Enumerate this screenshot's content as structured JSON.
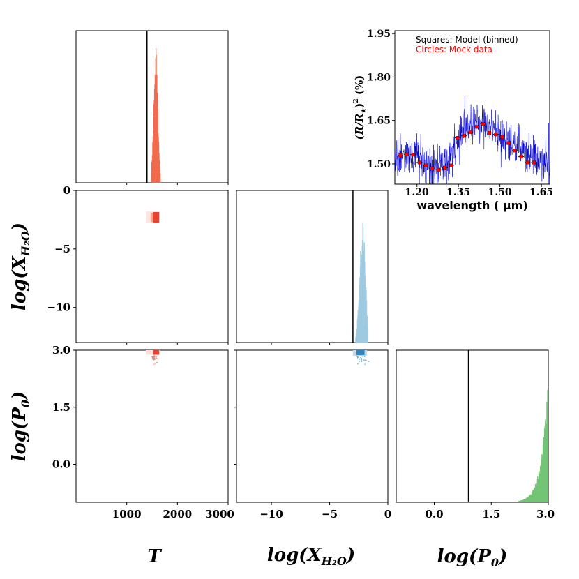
{
  "chart_data": [
    {
      "type": "histogram",
      "panel": "T-marginal",
      "title": "",
      "xlabel": "T",
      "xlim": [
        0,
        3000
      ],
      "xticks": [
        "1000",
        "2000",
        "3000"
      ],
      "true_value": 1400,
      "posterior_center": 1560,
      "posterior_width": 40,
      "color": "#f26b4f"
    },
    {
      "type": "scatter-density",
      "panel": "T-vs-logX",
      "xlim": [
        0,
        3000
      ],
      "ylim": [
        -13,
        0
      ],
      "center": [
        1560,
        -2.3
      ],
      "ylabel": "log(X_H2O)",
      "ylabel_display": "log(XH2O)",
      "yticks": [
        "0",
        "−5",
        "−10"
      ],
      "color": "#e8412f"
    },
    {
      "type": "histogram",
      "panel": "logX-marginal",
      "xlim": [
        -13,
        0
      ],
      "xticks": [
        "−10",
        "−5",
        "0"
      ],
      "xlabel": "log(X_H2O)",
      "xlabel_display": "log(XH2O)",
      "true_value": -3,
      "posterior_center": -2.2,
      "color": "#9ecae1"
    },
    {
      "type": "scatter-density",
      "panel": "T-vs-logP",
      "xlim": [
        0,
        3000
      ],
      "ylim": [
        -1,
        3
      ],
      "center": [
        1560,
        2.85
      ],
      "ylabel": "log(P0)",
      "yticks": [
        "3.0",
        "1.5",
        "0.0"
      ],
      "color": "#e8412f"
    },
    {
      "type": "scatter-density",
      "panel": "logX-vs-logP",
      "xlim": [
        -13,
        0
      ],
      "ylim": [
        -1,
        3
      ],
      "center": [
        -2.3,
        2.85
      ],
      "color": "#3182bd"
    },
    {
      "type": "histogram",
      "panel": "logP-marginal",
      "xlim": [
        -1,
        3
      ],
      "xticks": [
        "0.0",
        "1.5",
        "3.0"
      ],
      "xlabel": "log(P0)",
      "true_value": 0.9,
      "posterior_center": 3.0,
      "color": "#74c476"
    },
    {
      "type": "line+scatter",
      "panel": "spectrum",
      "xlabel": "wavelength ( μm)",
      "ylabel": "(R/R*)^2 (%)",
      "ylabel_display": "(R/R★)2 (%)",
      "xlim": [
        1.12,
        1.68
      ],
      "ylim": [
        1.43,
        1.96
      ],
      "xticks": [
        "1.20",
        "1.35",
        "1.50",
        "1.65"
      ],
      "yticks": [
        "1.50",
        "1.65",
        "1.80",
        "1.95"
      ],
      "legend": [
        "Squares: Model (binned)",
        "Circles: Mock data"
      ],
      "legend_colors": [
        "#000000",
        "#ff0000"
      ],
      "model_color": "#0000cc",
      "model_anchors": {
        "x": [
          1.12,
          1.15,
          1.2,
          1.23,
          1.26,
          1.3,
          1.33,
          1.36,
          1.4,
          1.44,
          1.47,
          1.5,
          1.54,
          1.58,
          1.62,
          1.68
        ],
        "y": [
          1.5,
          1.53,
          1.525,
          1.5,
          1.485,
          1.49,
          1.55,
          1.6,
          1.63,
          1.64,
          1.61,
          1.6,
          1.58,
          1.55,
          1.52,
          1.49
        ]
      },
      "binned_x": [
        1.14,
        1.163,
        1.186,
        1.209,
        1.232,
        1.255,
        1.278,
        1.301,
        1.324,
        1.347,
        1.37,
        1.393,
        1.416,
        1.439,
        1.462,
        1.485,
        1.508,
        1.531,
        1.554,
        1.577,
        1.6,
        1.623
      ],
      "binned_y": [
        1.53,
        1.533,
        1.532,
        1.505,
        1.495,
        1.485,
        1.48,
        1.487,
        1.495,
        1.59,
        1.597,
        1.61,
        1.628,
        1.638,
        1.607,
        1.602,
        1.593,
        1.572,
        1.546,
        1.525,
        1.505,
        1.505
      ]
    }
  ],
  "labels": {
    "x_T": "T",
    "x_logX": "log(X",
    "x_logX_sub": "H₂O",
    "x_logX_close": ")",
    "x_logP": "log(P",
    "x_logP_sub": "0",
    "x_logP_close": ")",
    "y_logX": "log(X",
    "y_logX_sub": "H₂O",
    "y_logX_close": ")",
    "y_logP": "log(P",
    "y_logP_sub": "0",
    "y_logP_close": ")"
  },
  "spectrum_labels": {
    "xlabel": "wavelength ( μm)",
    "ylabel_main": "(R/R",
    "ylabel_sub": "★",
    "ylabel_close": ")",
    "ylabel_sup": "2",
    "ylabel_unit": " (%)"
  }
}
